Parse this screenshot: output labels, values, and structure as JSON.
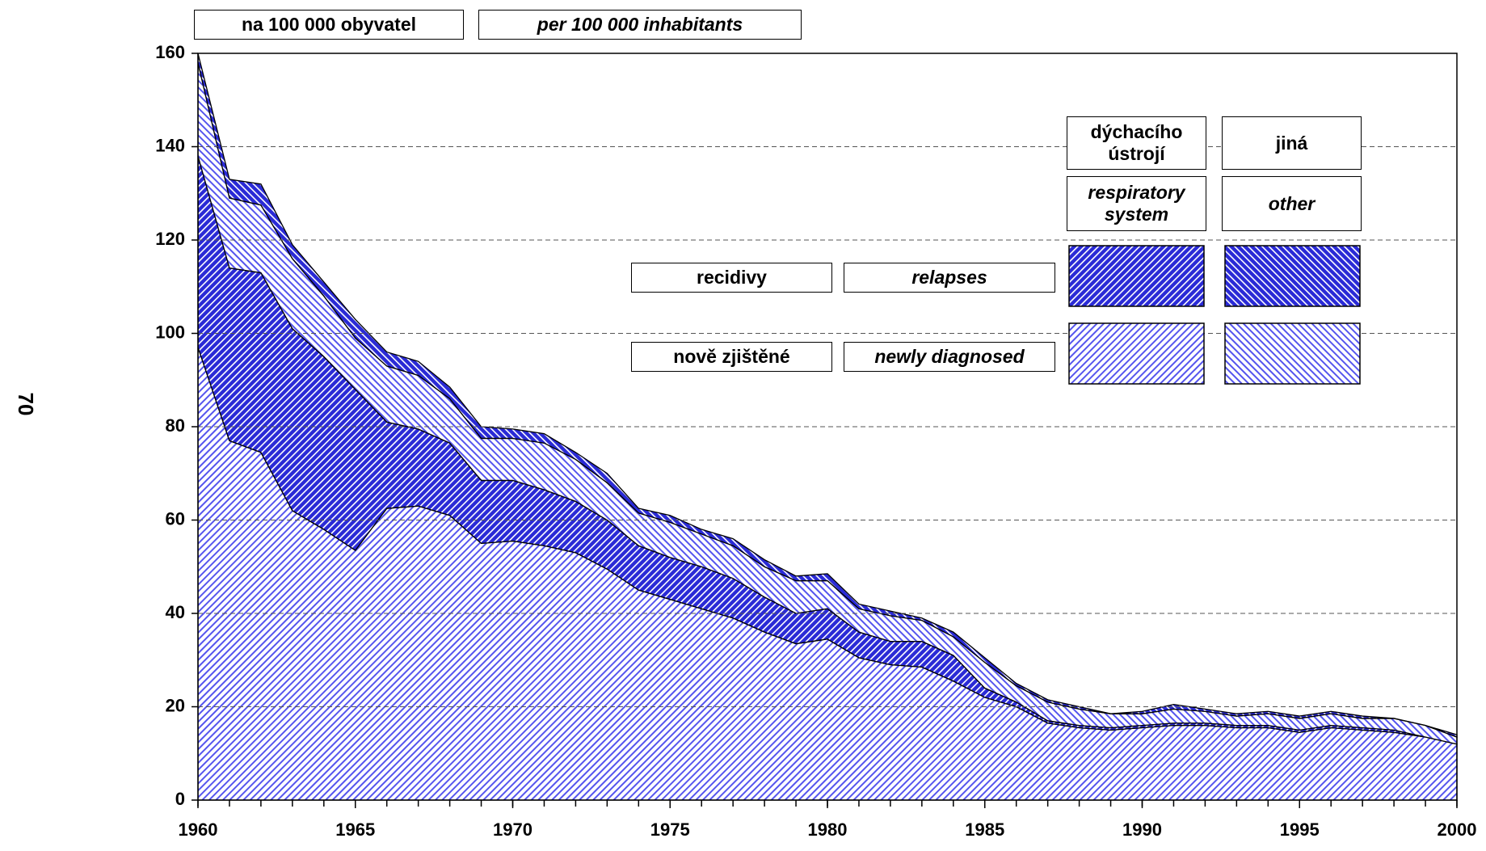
{
  "chart_data": {
    "type": "stacked_area",
    "page_number": "70",
    "header": [
      "na 100 000 obyvatel",
      "per 100 000 inhabitants"
    ],
    "legend": {
      "columns": [
        [
          "dýchacího ústrojí",
          "respiratory system"
        ],
        [
          "jiná",
          "other"
        ]
      ],
      "rows": [
        [
          "recidivy",
          "relapses"
        ],
        [
          "nově zjištěné",
          "newly diagnosed"
        ]
      ]
    },
    "x": [
      1960,
      1961,
      1962,
      1963,
      1964,
      1965,
      1966,
      1967,
      1968,
      1969,
      1970,
      1971,
      1972,
      1973,
      1974,
      1975,
      1976,
      1977,
      1978,
      1979,
      1980,
      1981,
      1982,
      1983,
      1984,
      1985,
      1986,
      1987,
      1988,
      1989,
      1990,
      1991,
      1992,
      1993,
      1994,
      1995,
      1996,
      1997,
      1998,
      1999,
      2000
    ],
    "xlim": [
      1960,
      2000
    ],
    "xticks": [
      1960,
      1965,
      1970,
      1975,
      1980,
      1985,
      1990,
      1995,
      2000
    ],
    "ylim": [
      0,
      160
    ],
    "yticks": [
      0,
      20,
      40,
      60,
      80,
      100,
      120,
      140,
      160
    ],
    "grid": true,
    "series": [
      {
        "color": "#5555ee",
        "pattern": "light-forward",
        "values": [
          97,
          77,
          74.5,
          62,
          58,
          53.5,
          62.5,
          63,
          61,
          55,
          55.5,
          54.5,
          53,
          49.5,
          45,
          43,
          41,
          39,
          36,
          33.5,
          34.5,
          30.5,
          29,
          28.5,
          25.5,
          22,
          20,
          16.5,
          15.5,
          15,
          15.5,
          16,
          16,
          15.5,
          15.5,
          14.5,
          15.5,
          15,
          14.5,
          13.5,
          12
        ]
      },
      {
        "color": "#2a2ad6",
        "pattern": "dark-forward",
        "values": [
          41,
          37,
          38.5,
          39,
          37,
          34.5,
          18.5,
          16.5,
          15.5,
          13.5,
          13,
          12,
          11,
          10.5,
          9.5,
          9,
          9,
          8.5,
          7.5,
          6.5,
          6.5,
          5.5,
          5,
          5.5,
          5.5,
          2,
          1,
          0.5,
          0.5,
          0.5,
          0.5,
          0.5,
          0.5,
          0.5,
          0.5,
          0.5,
          0.5,
          0.5,
          0.5,
          0,
          0
        ]
      },
      {
        "color": "#5555ee",
        "pattern": "light-back",
        "values": [
          20,
          15,
          14.5,
          15,
          13,
          11,
          12,
          11.5,
          9.5,
          9,
          9,
          10,
          9,
          8,
          7,
          7.5,
          7,
          7,
          6.5,
          7,
          6,
          5,
          5.5,
          4.5,
          4,
          5.5,
          3.5,
          4,
          3.5,
          3,
          2.5,
          3,
          2.5,
          2,
          2.5,
          2.5,
          2.5,
          2,
          2.5,
          2.5,
          1.5
        ]
      },
      {
        "color": "#2a2ad6",
        "pattern": "dark-back",
        "values": [
          2,
          4,
          4.5,
          3,
          3,
          4,
          3,
          3,
          2.5,
          2.5,
          2,
          2,
          1.5,
          2,
          1,
          1.5,
          1,
          1.5,
          1.5,
          1,
          1.5,
          1,
          1,
          0.5,
          1,
          1,
          0.5,
          0.5,
          0.5,
          0,
          0.5,
          1,
          0.5,
          0.5,
          0.5,
          0.5,
          0.5,
          0.5,
          0,
          0,
          0.5
        ]
      }
    ]
  }
}
